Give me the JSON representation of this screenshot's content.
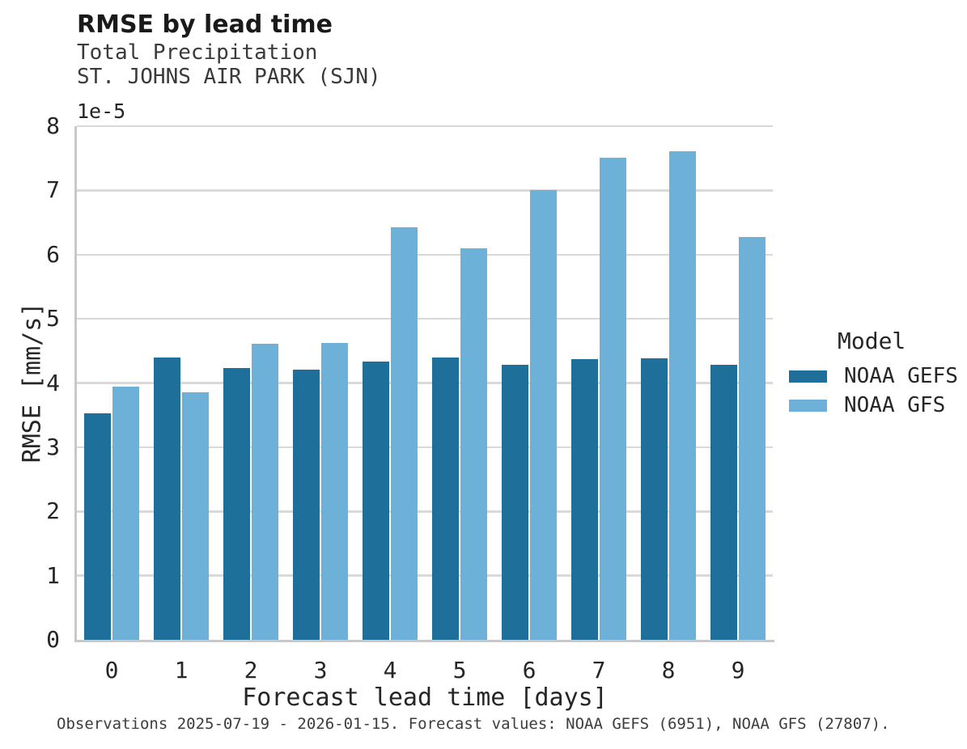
{
  "header": {
    "title": "RMSE by lead time",
    "subtitle1": "Total Precipitation",
    "subtitle2": "ST. JOHNS AIR PARK (SJN)"
  },
  "chart_data": {
    "type": "bar",
    "title": "RMSE by lead time",
    "subtitle": [
      "Total Precipitation",
      "ST. JOHNS AIR PARK (SJN)"
    ],
    "xlabel": "Forecast lead time [days]",
    "ylabel": "RMSE [mm/s]",
    "y_offset_text": "1e-5",
    "value_units": "1e-5 mm/s",
    "categories": [
      "0",
      "1",
      "2",
      "3",
      "4",
      "5",
      "6",
      "7",
      "8",
      "9"
    ],
    "series": [
      {
        "name": "NOAA GEFS",
        "color": "#1f6f9b",
        "values": [
          3.53,
          4.4,
          4.23,
          4.21,
          4.33,
          4.4,
          4.28,
          4.37,
          4.39,
          4.29
        ]
      },
      {
        "name": "NOAA GFS",
        "color": "#6db1d8",
        "values": [
          3.94,
          3.85,
          4.61,
          4.63,
          6.43,
          6.1,
          7.01,
          7.51,
          7.61,
          6.28
        ]
      }
    ],
    "ylim": [
      0,
      8
    ],
    "yticks": [
      0,
      1,
      2,
      3,
      4,
      5,
      6,
      7,
      8
    ],
    "grid": "horizontal",
    "legend_title": "Model",
    "legend_position": "right"
  },
  "colors": {
    "gridline": "#d9d9d9",
    "spine": "#c8c8c8",
    "background": "#ffffff"
  },
  "footer": {
    "caption": "Observations 2025-07-19 - 2026-01-15. Forecast values: NOAA GEFS (6951), NOAA GFS (27807)."
  }
}
